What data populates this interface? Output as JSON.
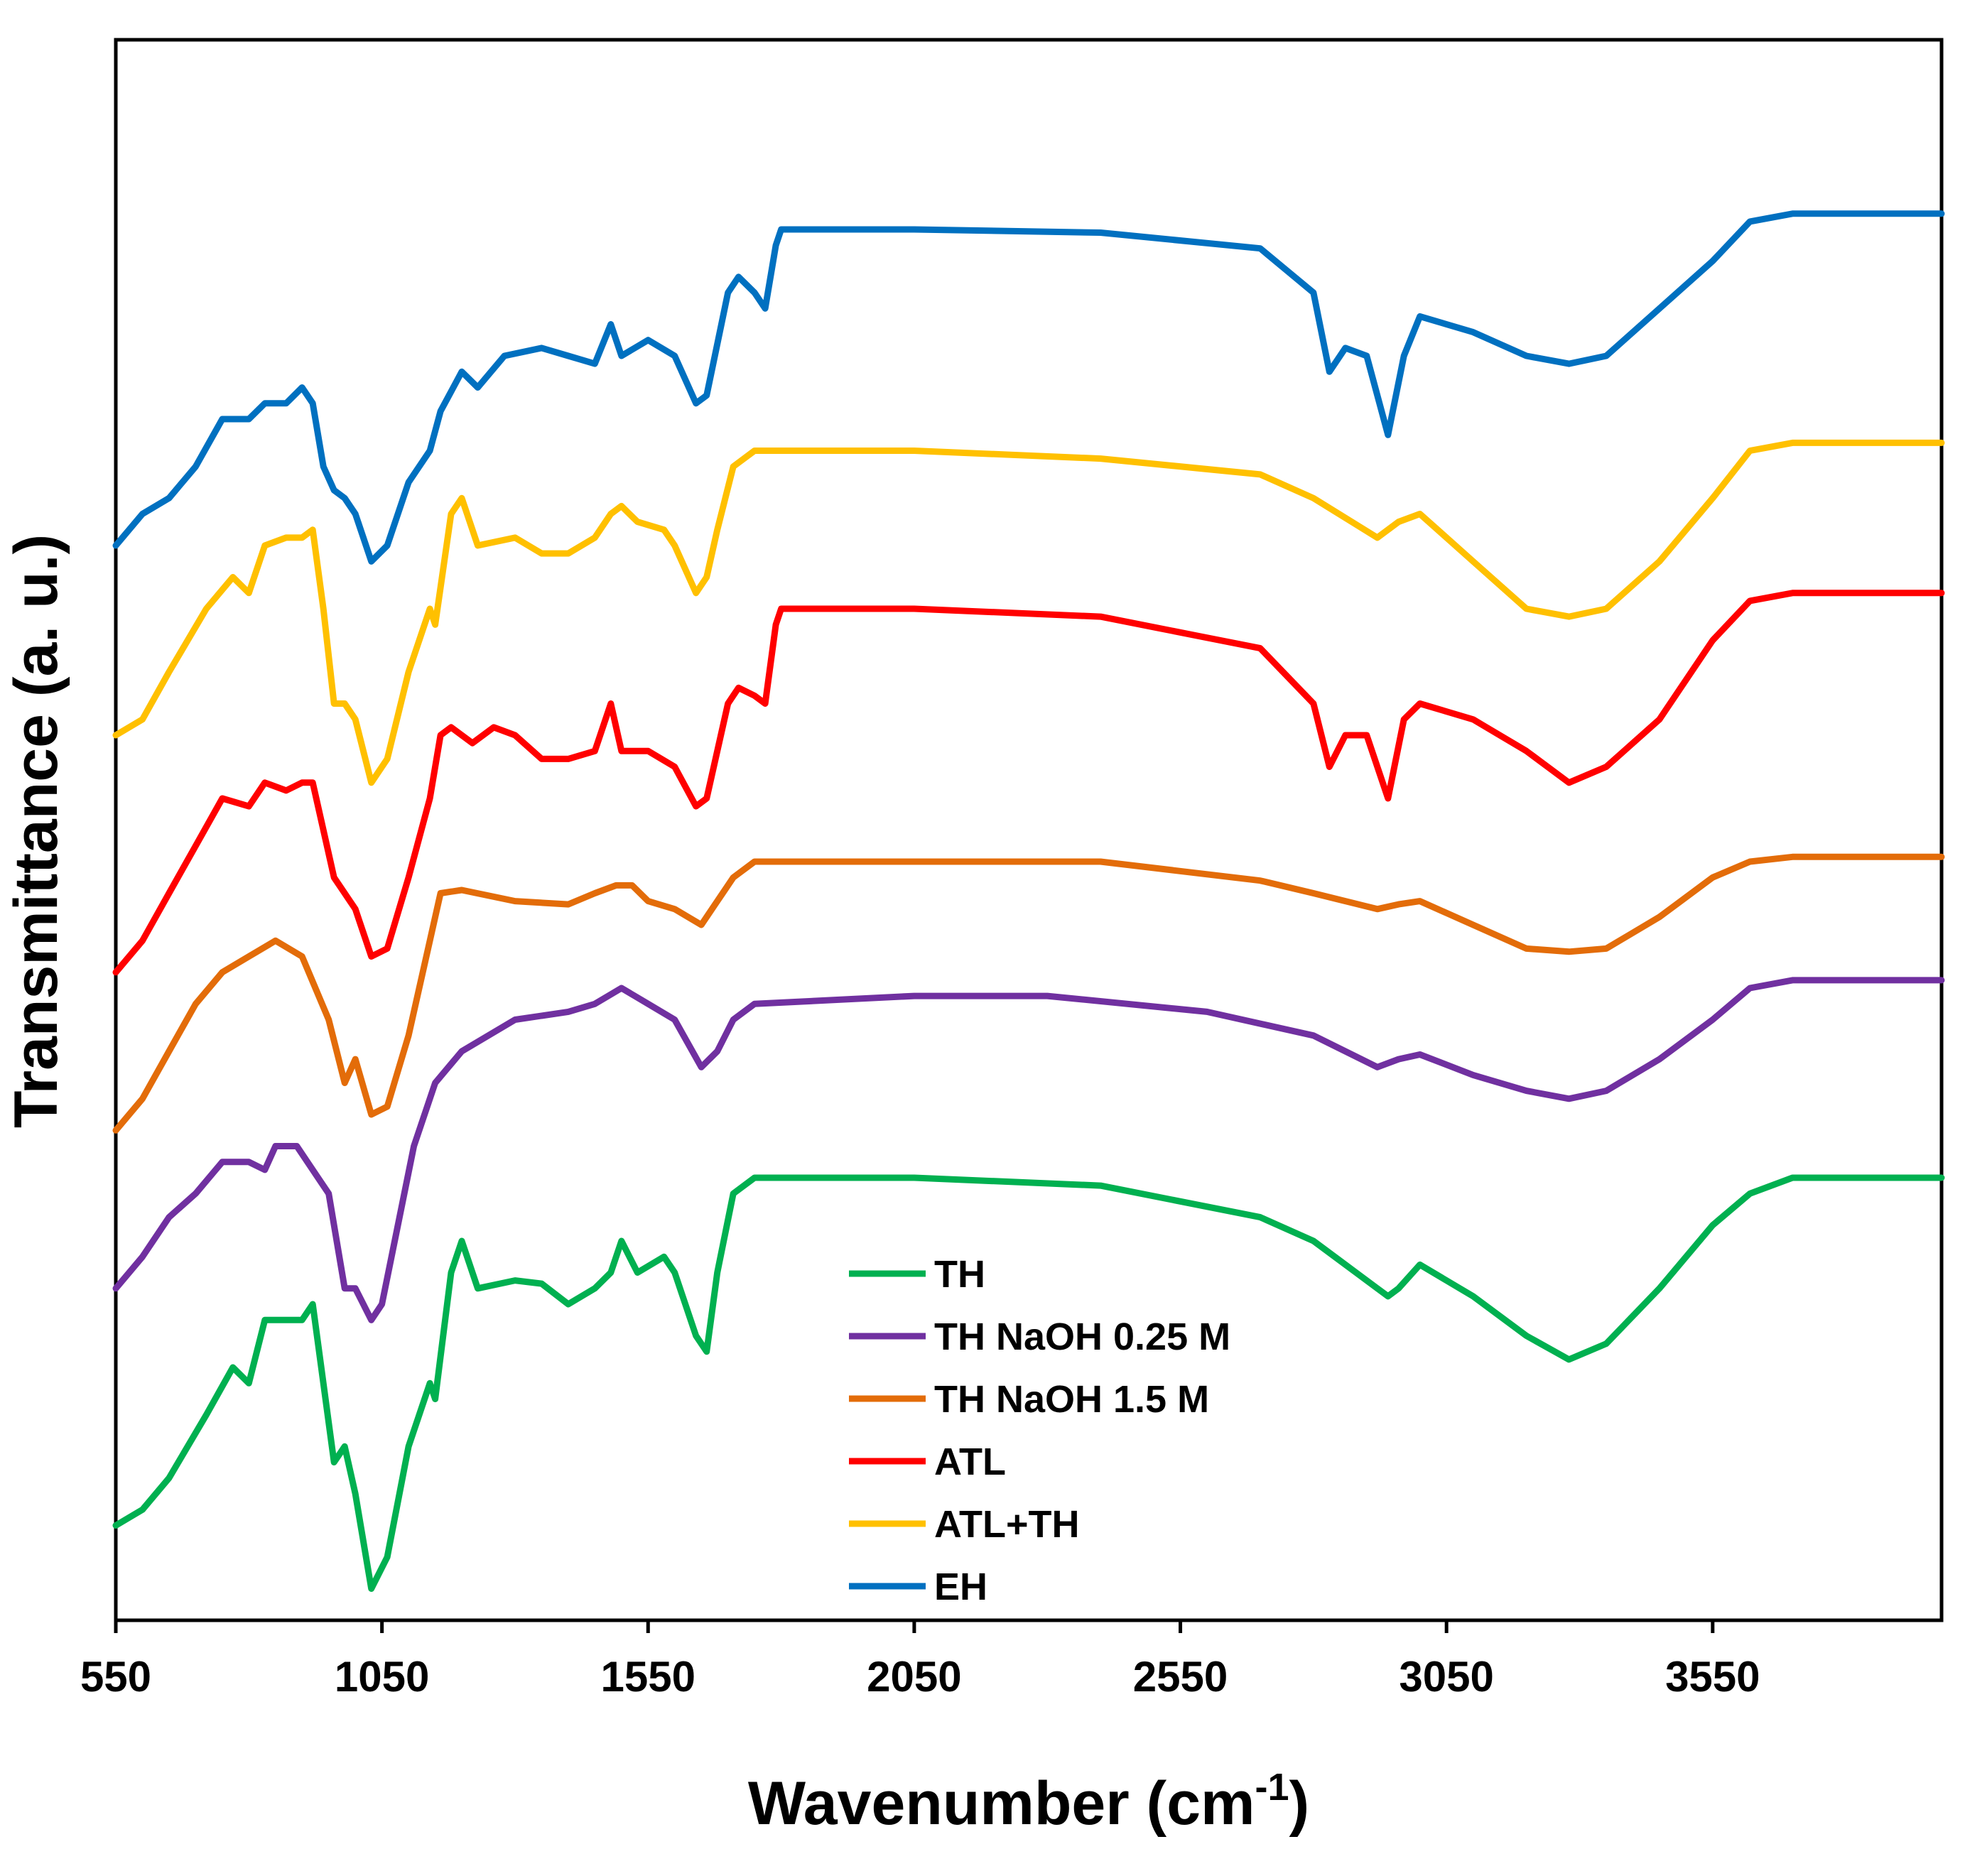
{
  "chart_data": {
    "type": "line",
    "title": "",
    "xlabel": "Wavenumber (cm",
    "xlabel_sup": "-1",
    "xlabel_end": ")",
    "ylabel": "Transmittance (a. u.)",
    "xlim": [
      550,
      3980
    ],
    "ylim": [
      0,
      100
    ],
    "xticks": [
      550,
      1050,
      1550,
      2050,
      2550,
      3050,
      3550
    ],
    "xtick_labels": [
      "550",
      "1050",
      "1550",
      "2050",
      "2550",
      "3050",
      "3550"
    ],
    "yticks_shown": false,
    "grid": false,
    "legend_position": "bottom-center",
    "series": [
      {
        "name": "TH",
        "color": "#00b050",
        "points": [
          [
            550,
            6
          ],
          [
            600,
            7
          ],
          [
            650,
            9
          ],
          [
            720,
            13
          ],
          [
            770,
            16
          ],
          [
            800,
            15
          ],
          [
            830,
            19
          ],
          [
            870,
            19
          ],
          [
            900,
            19
          ],
          [
            920,
            20
          ],
          [
            940,
            15
          ],
          [
            960,
            10
          ],
          [
            980,
            11
          ],
          [
            1000,
            8
          ],
          [
            1030,
            2
          ],
          [
            1060,
            4
          ],
          [
            1100,
            11
          ],
          [
            1140,
            15
          ],
          [
            1150,
            14
          ],
          [
            1180,
            22
          ],
          [
            1200,
            24
          ],
          [
            1230,
            21
          ],
          [
            1300,
            21.5
          ],
          [
            1350,
            21.3
          ],
          [
            1400,
            20
          ],
          [
            1450,
            21
          ],
          [
            1480,
            22
          ],
          [
            1500,
            24
          ],
          [
            1530,
            22
          ],
          [
            1580,
            23
          ],
          [
            1600,
            22
          ],
          [
            1640,
            18
          ],
          [
            1660,
            17
          ],
          [
            1680,
            22
          ],
          [
            1710,
            27
          ],
          [
            1750,
            28
          ],
          [
            2050,
            28
          ],
          [
            2400,
            27.5
          ],
          [
            2700,
            25.5
          ],
          [
            2800,
            24
          ],
          [
            2920,
            21
          ],
          [
            2940,
            20.5
          ],
          [
            2960,
            21
          ],
          [
            3000,
            22.5
          ],
          [
            3100,
            20.5
          ],
          [
            3200,
            18
          ],
          [
            3280,
            16.5
          ],
          [
            3350,
            17.5
          ],
          [
            3450,
            21
          ],
          [
            3550,
            25
          ],
          [
            3620,
            27
          ],
          [
            3700,
            28
          ],
          [
            3980,
            28
          ]
        ]
      },
      {
        "name": "TH NaOH 0.25 M",
        "color": "#7030a0",
        "points": [
          [
            550,
            21
          ],
          [
            600,
            23
          ],
          [
            650,
            25.5
          ],
          [
            700,
            27
          ],
          [
            750,
            29
          ],
          [
            800,
            29
          ],
          [
            830,
            28.5
          ],
          [
            850,
            30
          ],
          [
            890,
            30
          ],
          [
            920,
            28.5
          ],
          [
            950,
            27
          ],
          [
            980,
            21
          ],
          [
            1000,
            21
          ],
          [
            1030,
            19
          ],
          [
            1050,
            20
          ],
          [
            1080,
            25
          ],
          [
            1110,
            30
          ],
          [
            1150,
            34
          ],
          [
            1200,
            36
          ],
          [
            1250,
            37
          ],
          [
            1300,
            38
          ],
          [
            1400,
            38.5
          ],
          [
            1450,
            39
          ],
          [
            1500,
            40
          ],
          [
            1550,
            39
          ],
          [
            1600,
            38
          ],
          [
            1650,
            35
          ],
          [
            1680,
            36
          ],
          [
            1710,
            38
          ],
          [
            1750,
            39
          ],
          [
            2050,
            39.5
          ],
          [
            2300,
            39.5
          ],
          [
            2600,
            38.5
          ],
          [
            2800,
            37
          ],
          [
            2920,
            35
          ],
          [
            2960,
            35.5
          ],
          [
            3000,
            35.8
          ],
          [
            3100,
            34.5
          ],
          [
            3200,
            33.5
          ],
          [
            3280,
            33
          ],
          [
            3350,
            33.5
          ],
          [
            3450,
            35.5
          ],
          [
            3550,
            38
          ],
          [
            3620,
            40
          ],
          [
            3700,
            40.5
          ],
          [
            3980,
            40.5
          ]
        ]
      },
      {
        "name": "TH NaOH 1.5 M",
        "color": "#e36c09",
        "points": [
          [
            550,
            31
          ],
          [
            600,
            33
          ],
          [
            650,
            36
          ],
          [
            700,
            39
          ],
          [
            750,
            41
          ],
          [
            800,
            42
          ],
          [
            850,
            43
          ],
          [
            900,
            42
          ],
          [
            950,
            38
          ],
          [
            980,
            34
          ],
          [
            1000,
            35.5
          ],
          [
            1030,
            32
          ],
          [
            1060,
            32.5
          ],
          [
            1100,
            37
          ],
          [
            1140,
            43
          ],
          [
            1160,
            46
          ],
          [
            1200,
            46.2
          ],
          [
            1300,
            45.5
          ],
          [
            1400,
            45.3
          ],
          [
            1450,
            46
          ],
          [
            1490,
            46.5
          ],
          [
            1520,
            46.5
          ],
          [
            1550,
            45.5
          ],
          [
            1600,
            45
          ],
          [
            1650,
            44
          ],
          [
            1680,
            45.5
          ],
          [
            1710,
            47
          ],
          [
            1750,
            48
          ],
          [
            2050,
            48
          ],
          [
            2400,
            48
          ],
          [
            2700,
            46.8
          ],
          [
            2800,
            46
          ],
          [
            2920,
            45
          ],
          [
            2960,
            45.3
          ],
          [
            3000,
            45.5
          ],
          [
            3100,
            44
          ],
          [
            3200,
            42.5
          ],
          [
            3280,
            42.3
          ],
          [
            3350,
            42.5
          ],
          [
            3450,
            44.5
          ],
          [
            3550,
            47
          ],
          [
            3620,
            48
          ],
          [
            3700,
            48.3
          ],
          [
            3980,
            48.3
          ]
        ]
      },
      {
        "name": "ATL",
        "color": "#ff0000",
        "points": [
          [
            550,
            41
          ],
          [
            600,
            43
          ],
          [
            650,
            46
          ],
          [
            700,
            49
          ],
          [
            750,
            52
          ],
          [
            800,
            51.5
          ],
          [
            830,
            53
          ],
          [
            870,
            52.5
          ],
          [
            900,
            53
          ],
          [
            920,
            53
          ],
          [
            940,
            50
          ],
          [
            960,
            47
          ],
          [
            980,
            46
          ],
          [
            1000,
            45
          ],
          [
            1030,
            42
          ],
          [
            1060,
            42.5
          ],
          [
            1100,
            47
          ],
          [
            1140,
            52
          ],
          [
            1160,
            56
          ],
          [
            1180,
            56.5
          ],
          [
            1220,
            55.5
          ],
          [
            1260,
            56.5
          ],
          [
            1300,
            56
          ],
          [
            1350,
            54.5
          ],
          [
            1400,
            54.5
          ],
          [
            1450,
            55
          ],
          [
            1480,
            58
          ],
          [
            1500,
            55
          ],
          [
            1550,
            55
          ],
          [
            1600,
            54
          ],
          [
            1640,
            51.5
          ],
          [
            1660,
            52
          ],
          [
            1700,
            58
          ],
          [
            1720,
            59
          ],
          [
            1750,
            58.5
          ],
          [
            1770,
            58
          ],
          [
            1790,
            63
          ],
          [
            1800,
            64
          ],
          [
            2050,
            64
          ],
          [
            2400,
            63.5
          ],
          [
            2700,
            61.5
          ],
          [
            2800,
            58
          ],
          [
            2830,
            54
          ],
          [
            2860,
            56
          ],
          [
            2900,
            56
          ],
          [
            2940,
            52
          ],
          [
            2970,
            57
          ],
          [
            3000,
            58
          ],
          [
            3100,
            57
          ],
          [
            3200,
            55
          ],
          [
            3280,
            53
          ],
          [
            3350,
            54
          ],
          [
            3450,
            57
          ],
          [
            3550,
            62
          ],
          [
            3620,
            64.5
          ],
          [
            3700,
            65
          ],
          [
            3980,
            65
          ]
        ]
      },
      {
        "name": "ATL+TH",
        "color": "#ffc000",
        "points": [
          [
            550,
            56
          ],
          [
            600,
            57
          ],
          [
            650,
            60
          ],
          [
            720,
            64
          ],
          [
            770,
            66
          ],
          [
            800,
            65
          ],
          [
            830,
            68
          ],
          [
            870,
            68.5
          ],
          [
            900,
            68.5
          ],
          [
            920,
            69
          ],
          [
            940,
            64
          ],
          [
            960,
            58
          ],
          [
            980,
            58
          ],
          [
            1000,
            57
          ],
          [
            1030,
            53
          ],
          [
            1060,
            54.5
          ],
          [
            1100,
            60
          ],
          [
            1140,
            64
          ],
          [
            1150,
            63
          ],
          [
            1180,
            70
          ],
          [
            1200,
            71
          ],
          [
            1230,
            68
          ],
          [
            1300,
            68.5
          ],
          [
            1350,
            67.5
          ],
          [
            1400,
            67.5
          ],
          [
            1450,
            68.5
          ],
          [
            1480,
            70
          ],
          [
            1500,
            70.5
          ],
          [
            1530,
            69.5
          ],
          [
            1580,
            69
          ],
          [
            1600,
            68
          ],
          [
            1640,
            65
          ],
          [
            1660,
            66
          ],
          [
            1680,
            69
          ],
          [
            1710,
            73
          ],
          [
            1750,
            74
          ],
          [
            2050,
            74
          ],
          [
            2400,
            73.5
          ],
          [
            2700,
            72.5
          ],
          [
            2800,
            71
          ],
          [
            2920,
            68.5
          ],
          [
            2960,
            69.5
          ],
          [
            3000,
            70
          ],
          [
            3100,
            67
          ],
          [
            3200,
            64
          ],
          [
            3280,
            63.5
          ],
          [
            3350,
            64
          ],
          [
            3450,
            67
          ],
          [
            3550,
            71
          ],
          [
            3620,
            74
          ],
          [
            3700,
            74.5
          ],
          [
            3980,
            74.5
          ]
        ]
      },
      {
        "name": "EH",
        "color": "#0070c0",
        "points": [
          [
            550,
            68
          ],
          [
            600,
            70
          ],
          [
            650,
            71
          ],
          [
            700,
            73
          ],
          [
            750,
            76
          ],
          [
            800,
            76
          ],
          [
            830,
            77
          ],
          [
            870,
            77
          ],
          [
            900,
            78
          ],
          [
            920,
            77
          ],
          [
            940,
            73
          ],
          [
            960,
            71.5
          ],
          [
            980,
            71
          ],
          [
            1000,
            70
          ],
          [
            1030,
            67
          ],
          [
            1060,
            68
          ],
          [
            1100,
            72
          ],
          [
            1140,
            74
          ],
          [
            1160,
            76.5
          ],
          [
            1200,
            79
          ],
          [
            1230,
            78
          ],
          [
            1280,
            80
          ],
          [
            1350,
            80.5
          ],
          [
            1400,
            80
          ],
          [
            1450,
            79.5
          ],
          [
            1480,
            82
          ],
          [
            1500,
            80
          ],
          [
            1550,
            81
          ],
          [
            1600,
            80
          ],
          [
            1640,
            77
          ],
          [
            1660,
            77.5
          ],
          [
            1700,
            84
          ],
          [
            1720,
            85
          ],
          [
            1750,
            84
          ],
          [
            1770,
            83
          ],
          [
            1790,
            87
          ],
          [
            1800,
            88
          ],
          [
            2050,
            88
          ],
          [
            2400,
            87.8
          ],
          [
            2700,
            86.8
          ],
          [
            2800,
            84
          ],
          [
            2830,
            79
          ],
          [
            2860,
            80.5
          ],
          [
            2900,
            80
          ],
          [
            2940,
            75
          ],
          [
            2970,
            80
          ],
          [
            3000,
            82.5
          ],
          [
            3100,
            81.5
          ],
          [
            3200,
            80
          ],
          [
            3280,
            79.5
          ],
          [
            3350,
            80
          ],
          [
            3450,
            83
          ],
          [
            3550,
            86
          ],
          [
            3620,
            88.5
          ],
          [
            3700,
            89
          ],
          [
            3980,
            89
          ]
        ]
      }
    ]
  }
}
